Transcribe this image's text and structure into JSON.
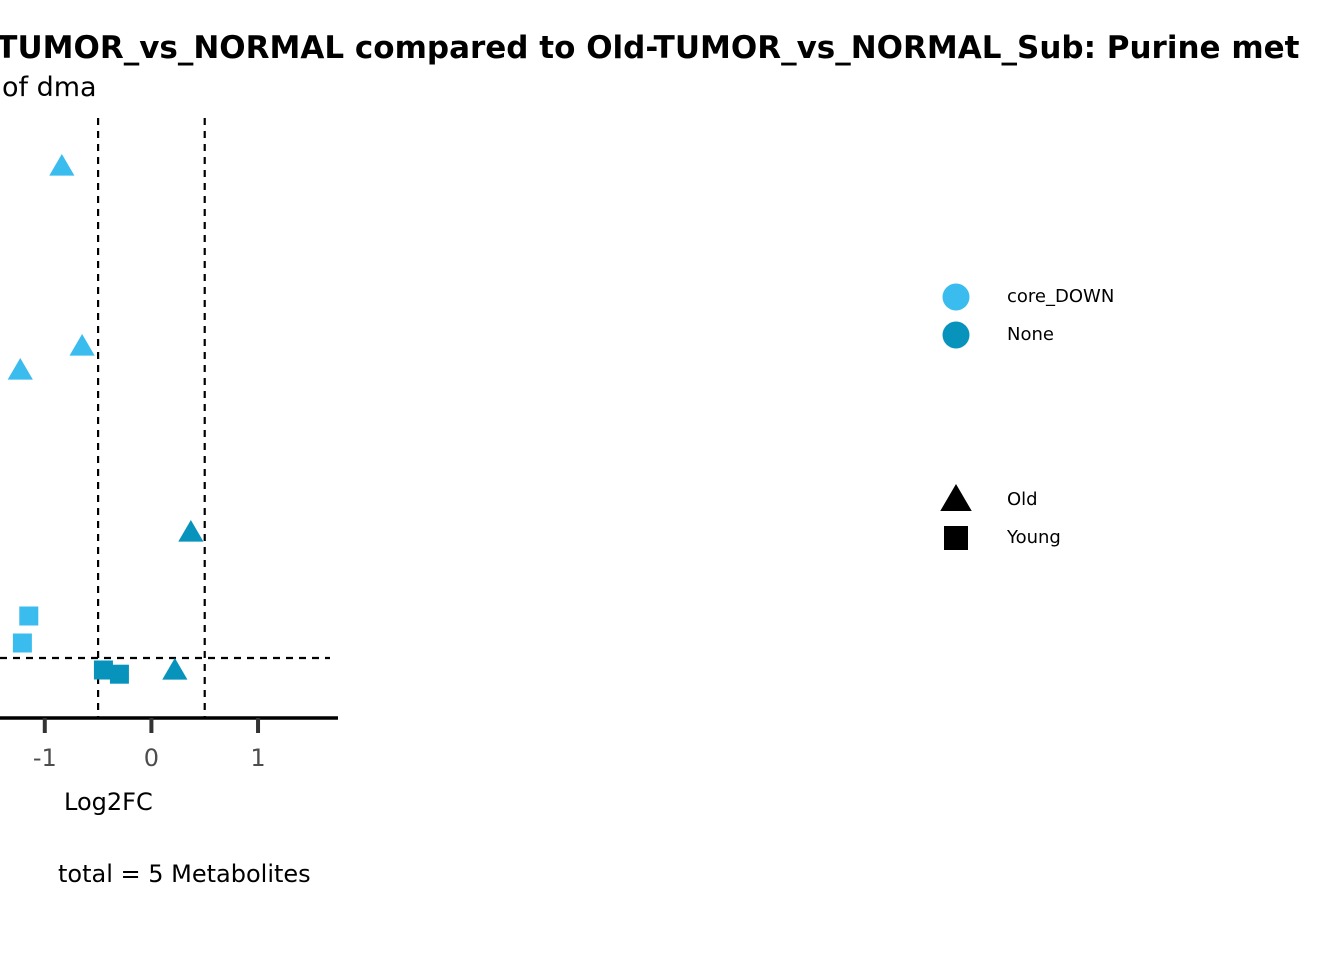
{
  "chart_data": {
    "type": "scatter",
    "title": "-TUMOR_vs_NORMAL compared to Old-TUMOR_vs_NORMAL_Sub: Purine met",
    "subtitle": "of dma",
    "xlabel": "Log2FC",
    "ylabel": "",
    "caption": "total = 5 Metabolites",
    "x_ticks": [
      -1,
      0,
      1
    ],
    "x_tick_labels": [
      "-1",
      "0",
      "1"
    ],
    "xlim": [
      -1.42,
      1.75
    ],
    "ylim": [
      0,
      1
    ],
    "reference_lines": {
      "vertical_x": [
        -0.5,
        0.5
      ],
      "horizontal_y": 0.1
    },
    "grid": false,
    "colors": {
      "core_DOWN": "#3bbcee",
      "None": "#0793bb"
    },
    "points": [
      {
        "x": -0.84,
        "y": 0.92,
        "group": "core_DOWN",
        "shape": "Old"
      },
      {
        "x": -0.65,
        "y": 0.62,
        "group": "core_DOWN",
        "shape": "Old"
      },
      {
        "x": -1.23,
        "y": 0.58,
        "group": "core_DOWN",
        "shape": "Old"
      },
      {
        "x": 0.37,
        "y": 0.31,
        "group": "None",
        "shape": "Old"
      },
      {
        "x": 0.22,
        "y": 0.08,
        "group": "None",
        "shape": "Old"
      },
      {
        "x": -1.15,
        "y": 0.17,
        "group": "core_DOWN",
        "shape": "Young"
      },
      {
        "x": -1.21,
        "y": 0.125,
        "group": "core_DOWN",
        "shape": "Young"
      },
      {
        "x": -0.45,
        "y": 0.08,
        "group": "None",
        "shape": "Young"
      },
      {
        "x": -0.3,
        "y": 0.073,
        "group": "None",
        "shape": "Young"
      }
    ],
    "legend": {
      "placement": "right",
      "color_entries": [
        {
          "label": "core_DOWN",
          "color": "#3bbcee"
        },
        {
          "label": "None",
          "color": "#0793bb"
        }
      ],
      "shape_entries": [
        {
          "label": "Old",
          "shape": "triangle"
        },
        {
          "label": "Young",
          "shape": "square"
        }
      ]
    }
  }
}
